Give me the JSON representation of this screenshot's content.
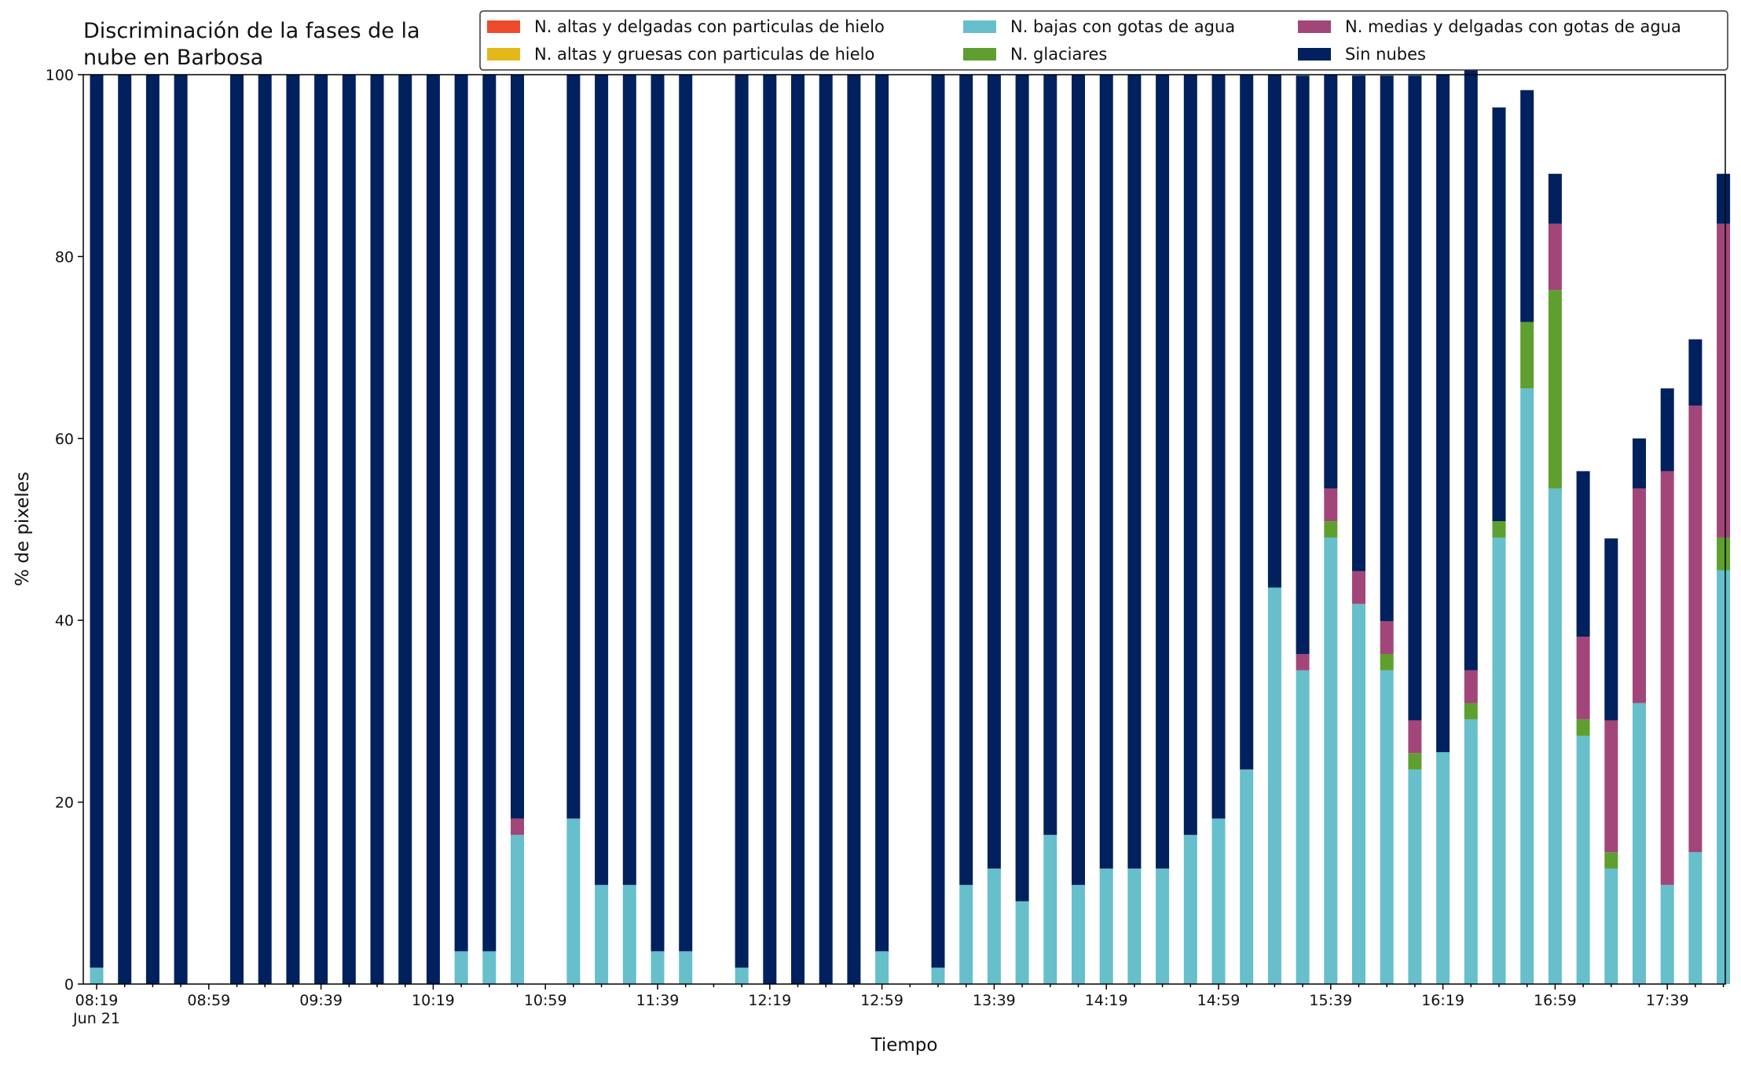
{
  "chart_data": {
    "type": "bar",
    "stacked": true,
    "title_lines": [
      "Discriminación de la fases de la",
      "nube en Barbosa"
    ],
    "xlabel": "Tiempo",
    "ylabel": "% de pixeles",
    "ylim": [
      0,
      100
    ],
    "yticks": [
      "0",
      "20",
      "40",
      "60",
      "80",
      "100"
    ],
    "xtick_labels": [
      "08:19",
      "08:59",
      "09:39",
      "10:19",
      "10:59",
      "11:39",
      "12:19",
      "12:59",
      "13:39",
      "14:19",
      "14:59",
      "15:39",
      "16:19",
      "16:59",
      "17:39"
    ],
    "xtick_sublabel": "Jun 21",
    "legend_position": "top-right",
    "grid": false,
    "categories": [
      "08:19",
      "08:29",
      "08:39",
      "08:49",
      "08:59",
      "09:09",
      "09:19",
      "09:29",
      "09:39",
      "09:49",
      "09:59",
      "10:09",
      "10:19",
      "10:29",
      "10:39",
      "10:49",
      "10:59",
      "11:09",
      "11:19",
      "11:29",
      "11:39",
      "11:49",
      "11:59",
      "12:09",
      "12:19",
      "12:29",
      "12:39",
      "12:49",
      "12:59",
      "13:09",
      "13:19",
      "13:29",
      "13:39",
      "13:49",
      "13:59",
      "14:09",
      "14:19",
      "14:29",
      "14:39",
      "14:49",
      "14:59",
      "15:09",
      "15:19",
      "15:29",
      "15:39",
      "15:49",
      "15:59",
      "16:09",
      "16:19",
      "16:29",
      "16:39",
      "16:49",
      "16:59",
      "17:09",
      "17:19",
      "17:29",
      "17:39",
      "17:49",
      "17:59"
    ],
    "series": [
      {
        "name": "N. altas y delgadas con particulas de hielo",
        "color": "#ee4a2c",
        "values": [
          0,
          0,
          0,
          0,
          null,
          0,
          0,
          0,
          0,
          0,
          0,
          0,
          0,
          0,
          0,
          0,
          null,
          0,
          0,
          0,
          0,
          0,
          null,
          0,
          0,
          0,
          0,
          0,
          0,
          null,
          0,
          0,
          0,
          0,
          0,
          0,
          0,
          0,
          0,
          0,
          0,
          0,
          0,
          0,
          0,
          0,
          0,
          0,
          0,
          0,
          0,
          0,
          0,
          0,
          0,
          0,
          0,
          0,
          0
        ]
      },
      {
        "name": "N. altas y gruesas con particulas de hielo",
        "color": "#e5b81a",
        "values": [
          0,
          0,
          0,
          0,
          null,
          0,
          0,
          0,
          0,
          0,
          0,
          0,
          0,
          0,
          0,
          0,
          null,
          0,
          0,
          0,
          0,
          0,
          null,
          0,
          0,
          0,
          0,
          0,
          0,
          null,
          0,
          0,
          0,
          0,
          0,
          0,
          0,
          0,
          0,
          0,
          0,
          0,
          0,
          0,
          0,
          0,
          0,
          0,
          0,
          0,
          0,
          0,
          0,
          0,
          0,
          0,
          0,
          0,
          0
        ]
      },
      {
        "name": "N. bajas con gotas de agua",
        "color": "#66bfcb",
        "values": [
          1.8,
          0,
          0,
          0,
          null,
          0,
          0,
          0,
          0,
          0,
          0,
          0,
          0,
          3.6,
          3.6,
          16.4,
          null,
          18.2,
          10.9,
          10.9,
          3.6,
          3.6,
          null,
          1.8,
          0,
          0,
          0,
          0,
          3.6,
          null,
          1.8,
          10.9,
          12.7,
          9.1,
          16.4,
          10.9,
          12.7,
          12.7,
          12.7,
          16.4,
          18.2,
          23.6,
          43.6,
          34.5,
          49.1,
          41.8,
          34.5,
          23.6,
          25.5,
          29.1,
          49.1,
          65.5,
          54.5,
          27.3,
          12.7,
          30.9,
          10.9,
          14.5,
          45.5
        ]
      },
      {
        "name": "N. glaciares",
        "color": "#5f9f2f",
        "values": [
          0,
          0,
          0,
          0,
          null,
          0,
          0,
          0,
          0,
          0,
          0,
          0,
          0,
          0,
          0,
          0,
          null,
          0,
          0,
          0,
          0,
          0,
          null,
          0,
          0,
          0,
          0,
          0,
          0,
          null,
          0,
          0,
          0,
          0,
          0,
          0,
          0,
          0,
          0,
          0,
          0,
          0,
          0,
          0,
          1.8,
          0,
          1.8,
          1.8,
          0,
          1.8,
          1.8,
          7.3,
          21.8,
          1.8,
          1.8,
          0,
          0,
          0,
          3.6
        ]
      },
      {
        "name": "N. medias y delgadas con gotas de agua",
        "color": "#a2467a",
        "values": [
          0,
          0,
          0,
          0,
          null,
          0,
          0,
          0,
          0,
          0,
          0,
          0,
          0,
          0,
          0,
          1.8,
          null,
          0,
          0,
          0,
          0,
          0,
          null,
          0,
          0,
          0,
          0,
          0,
          0,
          null,
          0,
          0,
          0,
          0,
          0,
          0,
          0,
          0,
          0,
          0,
          0,
          0,
          0,
          1.8,
          3.6,
          3.6,
          3.6,
          3.6,
          0,
          3.6,
          0,
          0,
          7.3,
          9.1,
          14.5,
          23.6,
          45.5,
          49.1,
          34.5
        ]
      },
      {
        "name": "Sin nubes",
        "color": "#00205e",
        "values": [
          98.2,
          100,
          100,
          100,
          null,
          100,
          100,
          100,
          100,
          100,
          100,
          100,
          100,
          96.4,
          96.4,
          81.8,
          null,
          81.8,
          89.1,
          89.1,
          96.4,
          96.4,
          null,
          98.2,
          100,
          100,
          100,
          100,
          96.4,
          null,
          98.2,
          89.1,
          87.3,
          90.9,
          83.6,
          89.1,
          87.3,
          87.3,
          87.3,
          83.6,
          81.8,
          76.4,
          56.4,
          63.6,
          45.5,
          54.5,
          60.0,
          70.9,
          74.5,
          69.1,
          45.5,
          25.5,
          5.5,
          18.2,
          20.0,
          5.5,
          9.1,
          7.3,
          5.5
        ]
      }
    ]
  }
}
